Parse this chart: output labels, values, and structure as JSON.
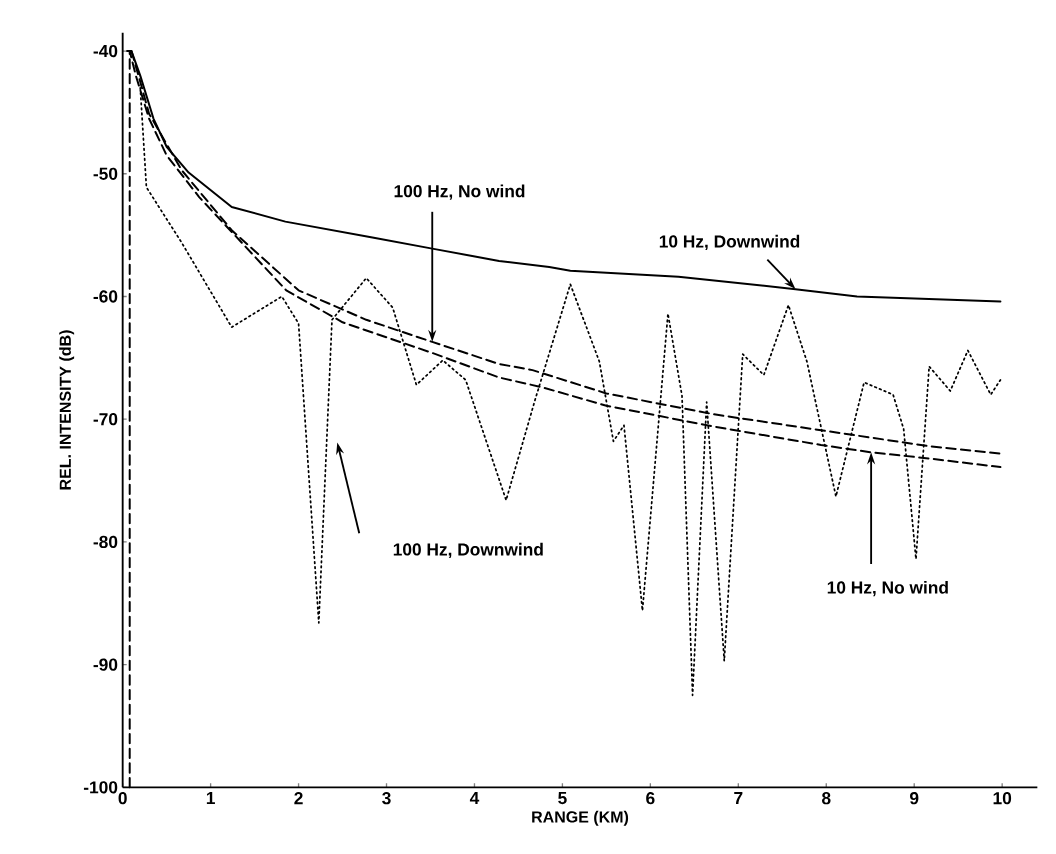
{
  "chart_data": {
    "type": "line",
    "xlabel": "RANGE (KM)",
    "ylabel": "REL. INTENSITY (dB)",
    "xlim": [
      0,
      10.4
    ],
    "ylim": [
      -100,
      -38.5
    ],
    "xticks": [
      0,
      1,
      2,
      3,
      4,
      5,
      6,
      7,
      8,
      9,
      10
    ],
    "yticks": [
      -100,
      -90,
      -80,
      -70,
      -60,
      -50,
      -40
    ],
    "series": [
      {
        "color": "#000000",
        "line_style": "solid",
        "x": [
          0.05,
          0.1,
          0.2,
          0.35,
          0.5,
          0.75,
          1.24,
          1.85,
          2.84,
          3.52,
          4.28,
          4.85,
          5.09,
          6.32,
          7.65,
          8.35,
          8.76,
          9.98
        ],
        "values": [
          -40,
          -40,
          -42,
          -45.5,
          -47.8,
          -49.9,
          -52.7,
          -53.9,
          -55.2,
          -56.1,
          -57.1,
          -57.6,
          -57.9,
          -58.4,
          -59.4,
          -60.0,
          -60.1,
          -60.4
        ]
      },
      {
        "color": "#000000",
        "line_style": "dashed",
        "x": [
          0.1,
          0.2,
          0.3,
          0.67,
          1.24,
          2.0,
          2.77,
          3.52,
          4.28,
          4.66,
          5.5,
          6.72,
          7.94,
          9.17,
          9.98
        ],
        "values": [
          -40,
          -42.5,
          -45.1,
          -49.7,
          -54.6,
          -59.5,
          -61.9,
          -63.7,
          -65.5,
          -66.0,
          -67.9,
          -69.6,
          -70.9,
          -72.2,
          -72.8
        ]
      },
      {
        "color": "#000000",
        "line_style": "dashed",
        "x": [
          0.08,
          0.08,
          0.15,
          0.3,
          0.5,
          0.87,
          1.86,
          2.5,
          3.52,
          4.28,
          4.77,
          5.5,
          6.72,
          7.94,
          8.51,
          9.17,
          9.98
        ],
        "values": [
          -100,
          -40,
          -42,
          -45.5,
          -48.5,
          -51.9,
          -59.5,
          -62.1,
          -64.6,
          -66.6,
          -67.4,
          -68.9,
          -70.6,
          -72.1,
          -72.7,
          -73.2,
          -73.9
        ]
      },
      {
        "color": "#000000",
        "line_style": "dotted",
        "x": [
          0.2,
          0.27,
          0.67,
          1.24,
          1.81,
          2.0,
          2.23,
          2.38,
          2.77,
          3.07,
          3.34,
          3.64,
          3.9,
          4.36,
          4.69,
          5.09,
          5.42,
          5.58,
          5.7,
          5.91,
          6.2,
          6.36,
          6.48,
          6.64,
          6.84,
          7.05,
          7.29,
          7.57,
          7.78,
          8.11,
          8.43,
          8.76,
          8.88,
          9.02,
          9.17,
          9.41,
          9.61,
          9.87,
          9.98
        ],
        "values": [
          -43,
          -51.1,
          -55.6,
          -62.5,
          -60.0,
          -62.2,
          -86.6,
          -61.9,
          -58.5,
          -60.9,
          -67.2,
          -65.2,
          -66.8,
          -76.6,
          -68.4,
          -59.0,
          -65.3,
          -71.8,
          -70.5,
          -85.6,
          -61.4,
          -68.1,
          -92.5,
          -68.6,
          -89.7,
          -64.7,
          -66.4,
          -60.7,
          -65.3,
          -76.3,
          -67.0,
          -68.0,
          -70.8,
          -81.4,
          -65.7,
          -67.7,
          -64.4,
          -68.0,
          -66.8
        ]
      }
    ],
    "annotations": [
      {
        "text": "100 Hz, No wind",
        "x": 3.52,
        "y": -63.7
      },
      {
        "text": "10 Hz, Downwind",
        "x": 7.65,
        "y": -59.4
      },
      "100 Hz, Downwind",
      {
        "text": "10 Hz, No wind",
        "x": 8.51,
        "y": -72.7
      }
    ]
  }
}
